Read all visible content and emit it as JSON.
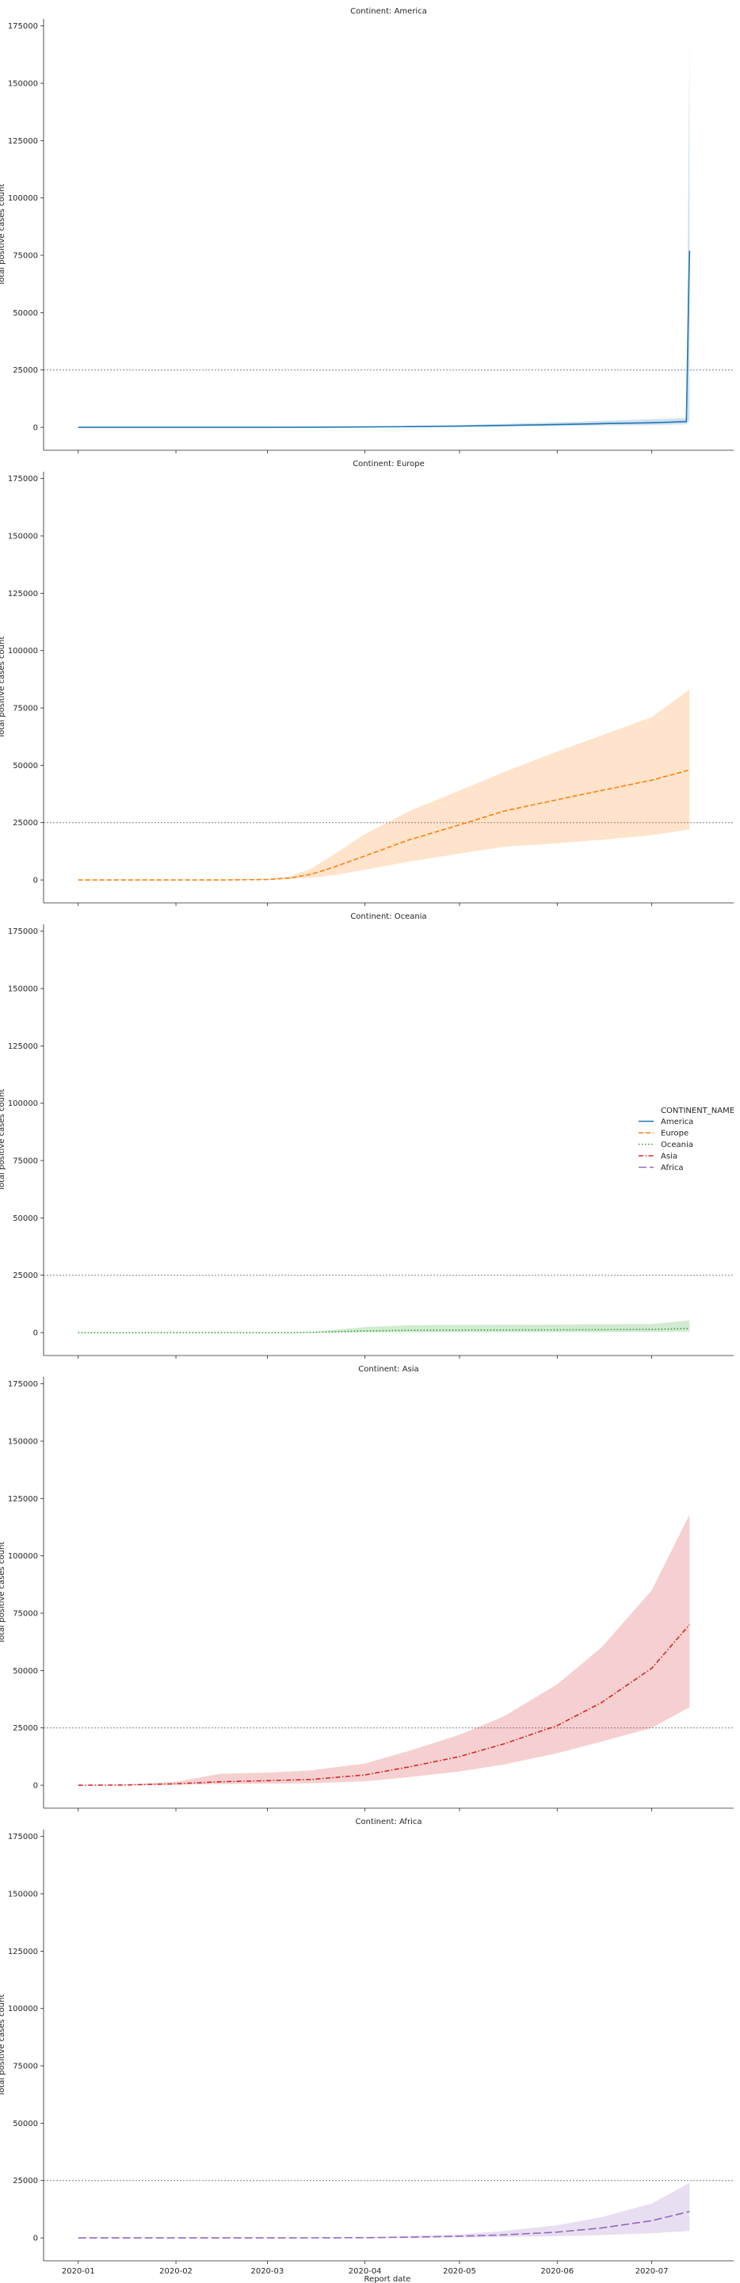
{
  "figure": {
    "xlabel": "Report date",
    "ylabel": "Total positive cases count",
    "reference_line_y": 25000,
    "legend": {
      "title": "CONTINENT_NAME",
      "placement": "right-center",
      "entries": [
        {
          "name": "America",
          "color": "#1f77b4",
          "dash": "solid"
        },
        {
          "name": "Europe",
          "color": "#ff7f0e",
          "dash": "dashed"
        },
        {
          "name": "Oceania",
          "color": "#2ca02c",
          "dash": "dotted"
        },
        {
          "name": "Asia",
          "color": "#d62728",
          "dash": "dashdot"
        },
        {
          "name": "Africa",
          "color": "#9467bd",
          "dash": "longdash"
        }
      ]
    },
    "xticks": [
      {
        "date": "2020-01-01",
        "label": "2020-01"
      },
      {
        "date": "2020-02-01",
        "label": "2020-02"
      },
      {
        "date": "2020-03-01",
        "label": "2020-03"
      },
      {
        "date": "2020-04-01",
        "label": "2020-04"
      },
      {
        "date": "2020-05-01",
        "label": "2020-05"
      },
      {
        "date": "2020-06-01",
        "label": "2020-06"
      },
      {
        "date": "2020-07-01",
        "label": "2020-07"
      }
    ],
    "yticks": [
      0,
      25000,
      50000,
      75000,
      100000,
      125000,
      150000,
      175000
    ]
  },
  "chart_data": [
    {
      "type": "line",
      "title": "Continent: America",
      "series_name": "America",
      "color": "#1f77b4",
      "xlim": [
        "2019-12-21",
        "2020-07-27"
      ],
      "ylim": [
        -10000,
        178000
      ],
      "x": [
        "2020-01-01",
        "2020-02-01",
        "2020-03-01",
        "2020-03-15",
        "2020-04-01",
        "2020-04-15",
        "2020-05-01",
        "2020-05-15",
        "2020-06-01",
        "2020-06-15",
        "2020-07-01",
        "2020-07-12",
        "2020-07-13"
      ],
      "y": [
        0,
        0,
        0,
        50,
        150,
        300,
        500,
        800,
        1200,
        1600,
        2000,
        2500,
        77000
      ],
      "y_low": [
        0,
        0,
        0,
        20,
        80,
        150,
        250,
        400,
        600,
        800,
        1000,
        1300,
        3000
      ],
      "y_high": [
        0,
        0,
        0,
        100,
        300,
        600,
        1000,
        1500,
        2200,
        2800,
        3500,
        4000,
        170000
      ]
    },
    {
      "type": "line",
      "title": "Continent: Europe",
      "series_name": "Europe",
      "color": "#ff7f0e",
      "xlim": [
        "2019-12-21",
        "2020-07-27"
      ],
      "ylim": [
        -10000,
        178000
      ],
      "x": [
        "2020-01-01",
        "2020-02-01",
        "2020-02-15",
        "2020-03-01",
        "2020-03-08",
        "2020-03-15",
        "2020-03-22",
        "2020-04-01",
        "2020-04-15",
        "2020-05-01",
        "2020-05-15",
        "2020-06-01",
        "2020-06-15",
        "2020-07-01",
        "2020-07-13"
      ],
      "y": [
        0,
        0,
        0,
        200,
        800,
        2500,
        5500,
        10500,
        17500,
        24000,
        30000,
        35000,
        39000,
        43500,
        48000
      ],
      "y_low": [
        0,
        0,
        0,
        100,
        400,
        1000,
        2000,
        4500,
        8000,
        11500,
        14500,
        16000,
        17500,
        19500,
        22000
      ],
      "y_high": [
        0,
        0,
        0,
        500,
        1500,
        5000,
        11000,
        20000,
        30000,
        39000,
        47000,
        56000,
        63000,
        71000,
        83000
      ]
    },
    {
      "type": "line",
      "title": "Continent: Oceania",
      "series_name": "Oceania",
      "color": "#2ca02c",
      "xlim": [
        "2019-12-21",
        "2020-07-27"
      ],
      "ylim": [
        -10000,
        178000
      ],
      "x": [
        "2020-01-01",
        "2020-02-01",
        "2020-03-01",
        "2020-03-15",
        "2020-04-01",
        "2020-04-15",
        "2020-05-01",
        "2020-06-01",
        "2020-07-01",
        "2020-07-13"
      ],
      "y": [
        0,
        0,
        0,
        100,
        700,
        1000,
        1100,
        1200,
        1400,
        1800
      ],
      "y_low": [
        0,
        0,
        0,
        0,
        100,
        150,
        200,
        200,
        300,
        400
      ],
      "y_high": [
        0,
        0,
        0,
        300,
        2400,
        3200,
        3400,
        3500,
        3800,
        5300
      ]
    },
    {
      "type": "line",
      "title": "Continent: Asia",
      "series_name": "Asia",
      "color": "#d62728",
      "xlim": [
        "2019-12-21",
        "2020-07-27"
      ],
      "ylim": [
        -10000,
        178000
      ],
      "x": [
        "2020-01-01",
        "2020-01-15",
        "2020-02-01",
        "2020-02-15",
        "2020-03-01",
        "2020-03-15",
        "2020-04-01",
        "2020-04-15",
        "2020-05-01",
        "2020-05-15",
        "2020-06-01",
        "2020-06-15",
        "2020-07-01",
        "2020-07-13"
      ],
      "y": [
        0,
        100,
        600,
        1500,
        2000,
        2500,
        4500,
        8000,
        12500,
        18000,
        26000,
        36000,
        51000,
        70000
      ],
      "y_low": [
        0,
        0,
        200,
        500,
        700,
        900,
        1700,
        3500,
        6000,
        9000,
        14000,
        19000,
        25000,
        34000
      ],
      "y_high": [
        0,
        200,
        1500,
        5000,
        5500,
        6500,
        9500,
        15000,
        22000,
        30000,
        44000,
        60000,
        85000,
        118000
      ]
    },
    {
      "type": "line",
      "title": "Continent: Africa",
      "series_name": "Africa",
      "color": "#9467bd",
      "xlim": [
        "2019-12-21",
        "2020-07-27"
      ],
      "ylim": [
        -10000,
        178000
      ],
      "x": [
        "2020-01-01",
        "2020-02-01",
        "2020-03-01",
        "2020-03-15",
        "2020-04-01",
        "2020-04-15",
        "2020-05-01",
        "2020-05-15",
        "2020-06-01",
        "2020-06-15",
        "2020-07-01",
        "2020-07-13"
      ],
      "y": [
        0,
        0,
        0,
        20,
        100,
        300,
        700,
        1300,
        2500,
        4300,
        7500,
        11500
      ],
      "y_low": [
        0,
        0,
        0,
        0,
        20,
        100,
        200,
        400,
        700,
        1200,
        2000,
        3000
      ],
      "y_high": [
        0,
        0,
        0,
        60,
        300,
        800,
        1500,
        3000,
        5500,
        9000,
        15000,
        24000
      ]
    }
  ]
}
